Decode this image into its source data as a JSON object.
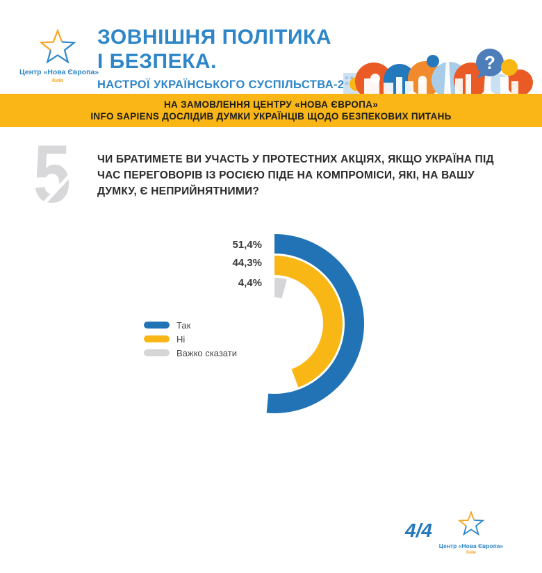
{
  "brand": {
    "logo_name": "Центр «Нова Європа»",
    "logo_city": "Київ"
  },
  "header": {
    "title_line1": "ЗОВНІШНЯ ПОЛІТИКА",
    "title_line2": "І БЕЗПЕКА.",
    "subtitle": "НАСТРОЇ УКРАЇНСЬКОГО СУСПІЛЬСТВА-2025"
  },
  "banner": {
    "line1": "НА ЗАМОВЛЕННЯ ЦЕНТРУ «НОВА ЄВРОПА»",
    "line2": "INFO SAPIENS ДОСЛІДИВ ДУМКИ УКРАЇНЦІВ ЩОДО БЕЗПЕКОВИХ ПИТАНЬ"
  },
  "question": {
    "number": "5",
    "line1": "ЧИ БРАТИМЕТЕ ВИ УЧАСТЬ У ПРОТЕСТНИХ АКЦІЯХ, ЯКЩО УКРАЇНА ПІД",
    "line2": "ЧАС ПЕРЕГОВОРІВ ІЗ РОСІЄЮ ПІДЕ НА КОМПРОМІСИ, ЯКІ, НА ВАШУ",
    "line3": "ДУМКУ, Є НЕПРИЙНЯТНИМИ?"
  },
  "chart_data": {
    "type": "pie",
    "variant": "concentric-arc-donut",
    "unit": "%",
    "categories": [
      "Так",
      "Ні",
      "Важко сказати"
    ],
    "values": [
      51.4,
      44.3,
      4.4
    ],
    "labels": [
      "51,4%",
      "44,3%",
      "4,4%"
    ],
    "colors": [
      "#2272B6",
      "#F9B715",
      "#D5D5D7"
    ],
    "start_angle_deg": 0,
    "clockwise": true,
    "max_angle_deg": 360,
    "legend_position": "left"
  },
  "footer": {
    "page": "4/4"
  },
  "colors": {
    "title_blue": "#2E86C8",
    "brand_blue": "#2272B6",
    "brand_yellow": "#F9B715",
    "banner_bg": "#F9B616",
    "neutral_gray": "#D5D5D7",
    "text_dark": "#2B2B2B"
  }
}
